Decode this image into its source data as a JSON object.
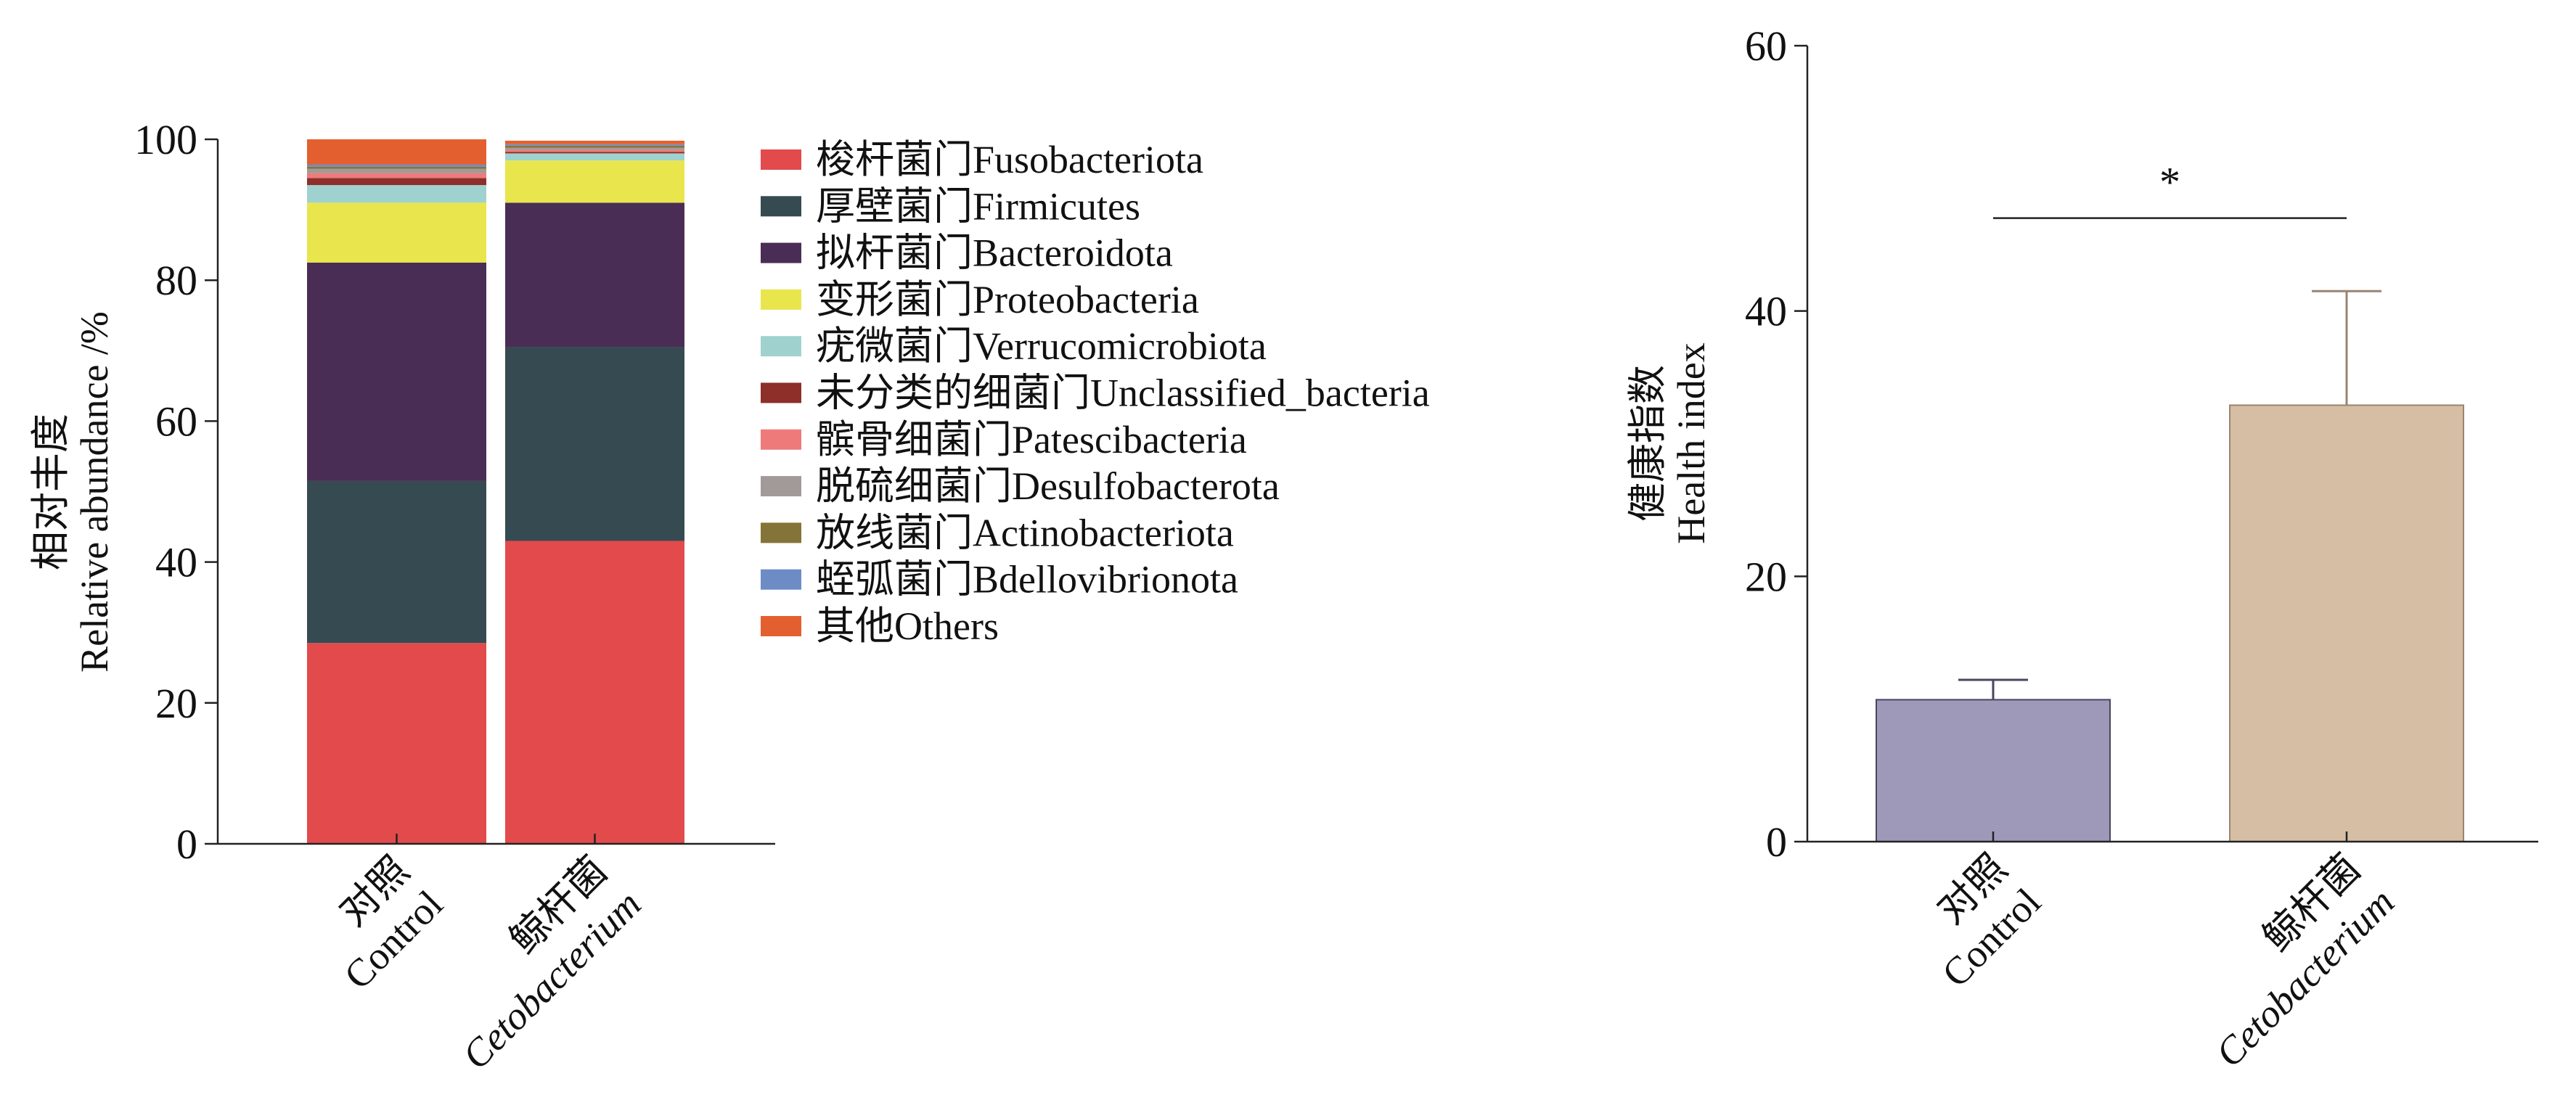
{
  "chart_data": [
    {
      "type": "bar",
      "stacked": true,
      "ylabel": [
        "相对丰度",
        "Relative abundance /%"
      ],
      "ylim": [
        0,
        100
      ],
      "yticks": [
        0,
        20,
        40,
        60,
        80,
        100
      ],
      "categories": [
        {
          "line1": "对照",
          "line2": "Control",
          "italic2": false
        },
        {
          "line1": "鲸杆菌",
          "line2": "Cetobacterium",
          "italic2": true
        }
      ],
      "series": [
        {
          "name": "梭杆菌门Fusobacteriota",
          "color": "#E24A4C",
          "values": [
            28.5,
            43.0
          ]
        },
        {
          "name": "厚壁菌门Firmicutes",
          "color": "#364A51",
          "values": [
            23.0,
            27.5
          ]
        },
        {
          "name": "拟杆菌门Bacteroidota",
          "color": "#4A2D55",
          "values": [
            31.0,
            20.5
          ]
        },
        {
          "name": "变形菌门Proteobacteria",
          "color": "#E8E54D",
          "values": [
            8.5,
            6.0
          ]
        },
        {
          "name": "疣微菌门Verrucomicrobiota",
          "color": "#9FD2CF",
          "values": [
            2.5,
            1.0
          ]
        },
        {
          "name": "未分类的细菌门Unclassified_bacteria",
          "color": "#8E2F2A",
          "values": [
            1.0,
            0.2
          ]
        },
        {
          "name": "髌骨细菌门Patescibacteria",
          "color": "#EE7B7A",
          "values": [
            0.7,
            0.3
          ]
        },
        {
          "name": "脱硫细菌门Desulfobacterota",
          "color": "#A29A98",
          "values": [
            0.6,
            0.3
          ]
        },
        {
          "name": "放线菌门Actinobacteriota",
          "color": "#857437",
          "values": [
            0.3,
            0.3
          ]
        },
        {
          "name": "蛭弧菌门Bdellovibrionota",
          "color": "#6D8CC6",
          "values": [
            0.3,
            0.2
          ]
        },
        {
          "name": "其他Others",
          "color": "#E45F30",
          "values": [
            3.6,
            0.5
          ]
        }
      ]
    },
    {
      "type": "bar",
      "ylabel": [
        "健康指数",
        "Health index"
      ],
      "ylim": [
        0,
        60
      ],
      "yticks": [
        0,
        20,
        40,
        60
      ],
      "categories": [
        {
          "line1": "对照",
          "line2": "Control",
          "italic2": false
        },
        {
          "line1": "鲸杆菌",
          "line2": "Cetobacterium",
          "italic2": true
        }
      ],
      "values": [
        10.7,
        32.9
      ],
      "errors": [
        1.5,
        8.6
      ],
      "colors": [
        "#9E98B9",
        "#D6BEA5"
      ],
      "edge_colors": [
        "#4A4560",
        "#9A8470"
      ],
      "significance": {
        "label": "*",
        "y": 47
      }
    }
  ]
}
